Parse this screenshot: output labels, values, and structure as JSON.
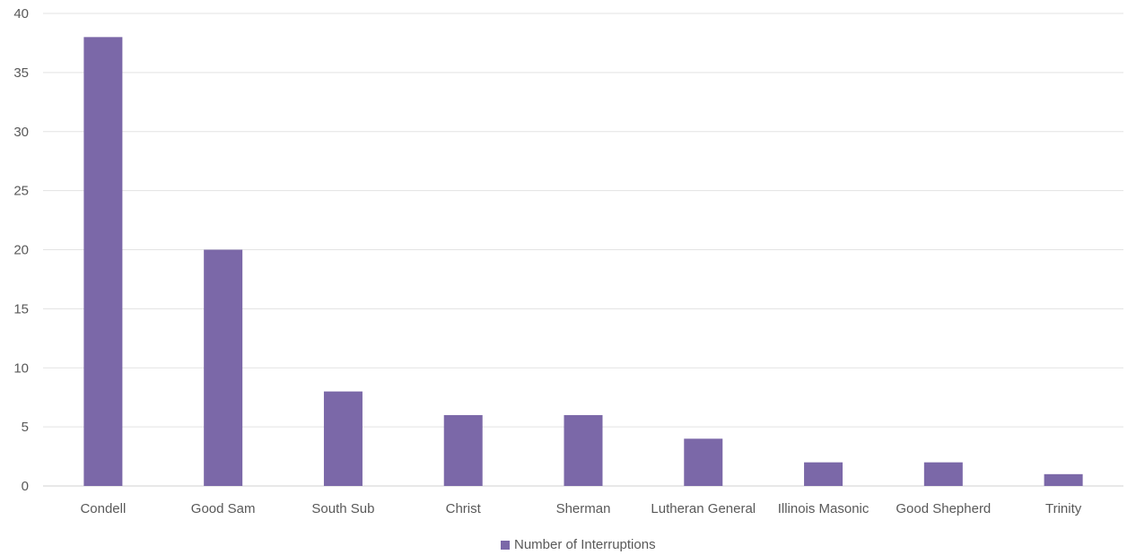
{
  "chart_data": {
    "type": "bar",
    "categories": [
      "Condell",
      "Good Sam",
      "South Sub",
      "Christ",
      "Sherman",
      "Lutheran General",
      "Illinois Masonic",
      "Good Shepherd",
      "Trinity"
    ],
    "series": [
      {
        "name": "Number of Interruptions",
        "values": [
          38,
          20,
          8,
          6,
          6,
          4,
          2,
          2,
          1
        ]
      }
    ],
    "yticks": [
      "0",
      "5",
      "10",
      "15",
      "20",
      "25",
      "30",
      "35",
      "40"
    ],
    "ylim": [
      0,
      40
    ],
    "grid": true,
    "legend_position": "bottom-center",
    "colors": {
      "bar": "#7b68a8",
      "grid": "#e3e3e3",
      "text": "#595959"
    }
  }
}
